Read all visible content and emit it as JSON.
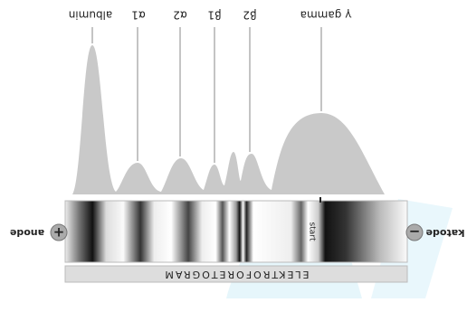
{
  "labels": {
    "albumin": "albumin",
    "alpha1": "α1",
    "alpha2": "α2",
    "beta1": "β1",
    "beta2": "β2",
    "gamma": "γ gamma"
  },
  "anode": "anode",
  "cathode": "katode",
  "start": "start",
  "strip_title": "ELEKTROFORETOGRAM"
}
